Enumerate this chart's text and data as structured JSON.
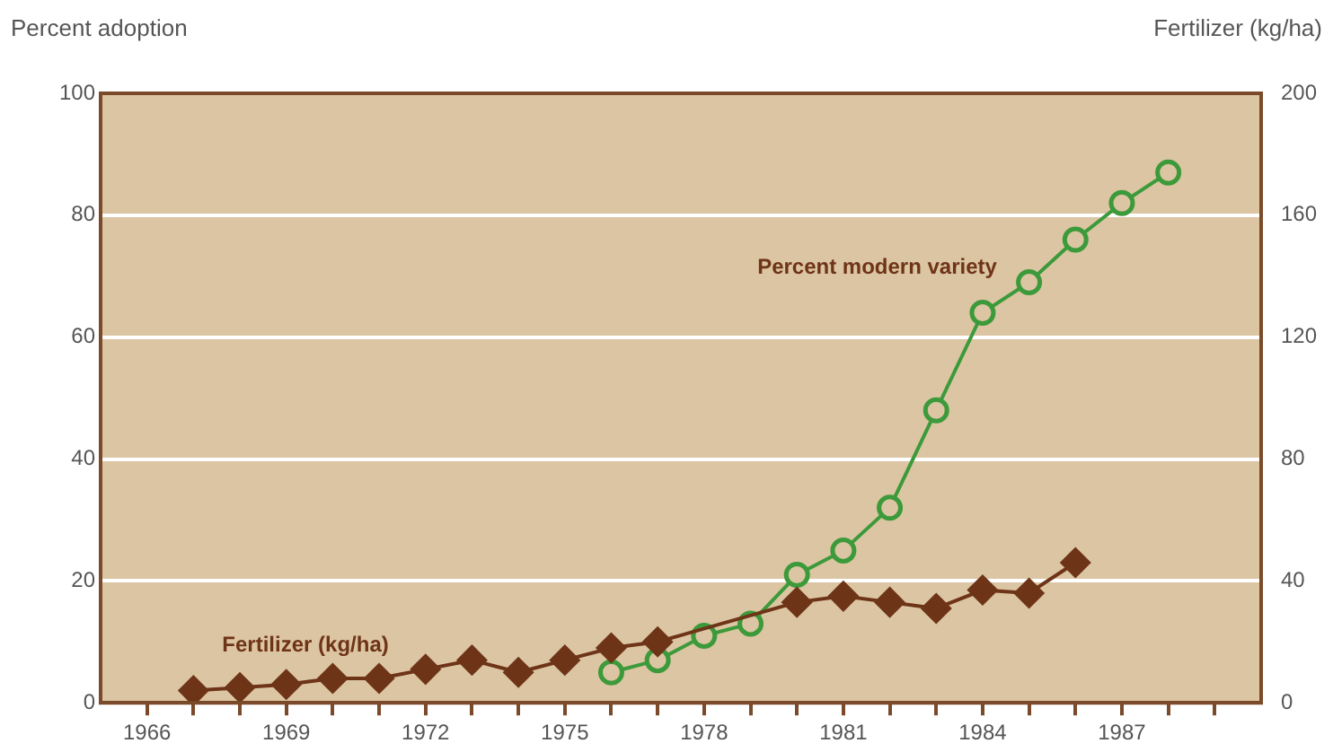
{
  "chart_data": {
    "type": "line",
    "ylabel": "Percent adoption",
    "y2label": "Fertilizer (kg/ha)",
    "xlim": [
      1965,
      1990
    ],
    "xticks": [
      {
        "value": 1966,
        "label": "1966"
      },
      {
        "value": 1967,
        "label": null
      },
      {
        "value": 1968,
        "label": null
      },
      {
        "value": 1969,
        "label": "1969"
      },
      {
        "value": 1970,
        "label": null
      },
      {
        "value": 1971,
        "label": null
      },
      {
        "value": 1972,
        "label": "1972"
      },
      {
        "value": 1973,
        "label": null
      },
      {
        "value": 1974,
        "label": null
      },
      {
        "value": 1975,
        "label": "1975"
      },
      {
        "value": 1976,
        "label": null
      },
      {
        "value": 1977,
        "label": null
      },
      {
        "value": 1978,
        "label": "1978"
      },
      {
        "value": 1979,
        "label": null
      },
      {
        "value": 1980,
        "label": null
      },
      {
        "value": 1981,
        "label": "1981"
      },
      {
        "value": 1982,
        "label": null
      },
      {
        "value": 1983,
        "label": null
      },
      {
        "value": 1984,
        "label": "1984"
      },
      {
        "value": 1985,
        "label": null
      },
      {
        "value": 1986,
        "label": null
      },
      {
        "value": 1987,
        "label": "1987"
      },
      {
        "value": 1988,
        "label": null
      },
      {
        "value": 1989,
        "label": null
      }
    ],
    "ylim": [
      0,
      100
    ],
    "yticks": [
      0,
      20,
      40,
      60,
      80,
      100
    ],
    "y2lim": [
      0,
      200
    ],
    "y2ticks": [
      0,
      40,
      80,
      120,
      160,
      200
    ],
    "grid": "y",
    "legend": false,
    "series": [
      {
        "name": "Fertilizer (kg/ha)",
        "color": "#6e3418",
        "axis": "y2",
        "marker": "diamond",
        "x": [
          1967,
          1968,
          1969,
          1970,
          1971,
          1972,
          1973,
          1974,
          1975,
          1976,
          1977,
          1978,
          1979,
          1980,
          1981,
          1982,
          1983,
          1984,
          1985,
          1986
        ],
        "values": [
          4,
          5,
          6,
          8,
          8,
          11,
          14,
          10,
          14,
          18,
          20,
          null,
          null,
          33,
          35,
          33,
          31,
          37,
          36,
          46
        ]
      },
      {
        "name": "Percent modern variety",
        "color": "#3c9a3a",
        "axis": "y",
        "marker": "circle",
        "x": [
          1976,
          1977,
          1978,
          1979,
          1980,
          1981,
          1982,
          1983,
          1984,
          1985,
          1986,
          1987,
          1988
        ],
        "values": [
          5,
          7,
          11,
          13,
          21,
          25,
          32,
          48,
          64,
          69,
          76,
          82,
          87
        ]
      }
    ]
  }
}
